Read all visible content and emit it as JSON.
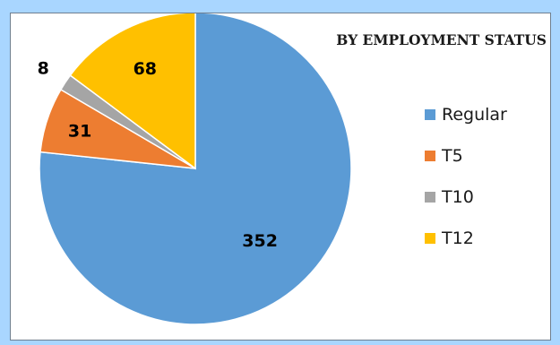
{
  "chart_data": {
    "type": "pie",
    "title": "BY EMPLOYMENT STATUS",
    "categories": [
      "Regular",
      "T5",
      "T10",
      "T12"
    ],
    "values": [
      352,
      31,
      8,
      68
    ],
    "data_labels": [
      "352",
      "31",
      "8",
      "68"
    ],
    "colors": [
      "#5b9bd5",
      "#ed7d31",
      "#a5a5a5",
      "#ffc000"
    ],
    "legend": {
      "position": "right",
      "entries": [
        "Regular",
        "T5",
        "T10",
        "T12"
      ]
    },
    "start_angle": "12 o'clock",
    "direction": "clockwise"
  }
}
